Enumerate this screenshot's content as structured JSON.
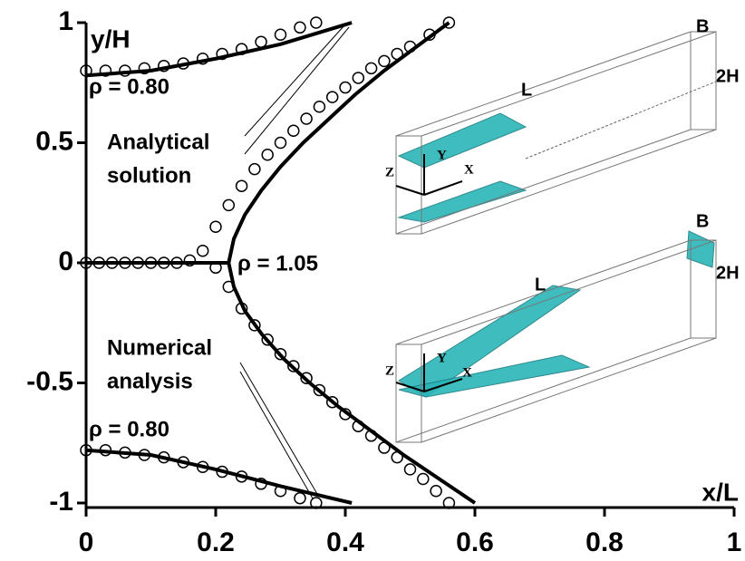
{
  "chart_data": {
    "type": "line",
    "xlabel": "x/L",
    "ylabel": "y/H",
    "xlim": [
      0,
      1
    ],
    "ylim": [
      -1,
      1
    ],
    "xticks": [
      0,
      0.2,
      0.4,
      0.6,
      0.8,
      1
    ],
    "yticks": [
      1,
      0.5,
      0,
      -0.5,
      -1
    ],
    "annotations": [
      "ρ = 0.80",
      "Analytical",
      "solution",
      "ρ = 1.05",
      "Numerical",
      "analysis",
      "ρ = 0.80"
    ],
    "series": [
      {
        "style": "line",
        "color": "#000000",
        "x": [
          0,
          0.1,
          0.2,
          0.3,
          0.41
        ],
        "values": [
          0.78,
          0.8,
          0.85,
          0.91,
          1.0
        ]
      },
      {
        "style": "line",
        "color": "#000000",
        "x": [
          0,
          0.1,
          0.2,
          0.3,
          0.41
        ],
        "values": [
          -0.78,
          -0.8,
          -0.86,
          -0.93,
          -1.0
        ]
      },
      {
        "style": "line",
        "color": "#000000",
        "x": [
          0,
          0.22
        ],
        "values": [
          0,
          0
        ]
      },
      {
        "style": "line",
        "color": "#000000",
        "x": [
          0.56,
          0.51,
          0.46,
          0.415,
          0.375,
          0.335,
          0.3,
          0.27,
          0.245,
          0.228,
          0.22,
          0.228,
          0.245,
          0.272,
          0.305,
          0.345,
          0.39,
          0.44,
          0.49,
          0.545,
          0.6
        ],
        "values": [
          1.0,
          0.9,
          0.8,
          0.7,
          0.6,
          0.5,
          0.4,
          0.3,
          0.2,
          0.1,
          0,
          -0.1,
          -0.2,
          -0.3,
          -0.4,
          -0.5,
          -0.6,
          -0.7,
          -0.8,
          -0.9,
          -1.0
        ]
      },
      {
        "style": "marker",
        "color": "#000000",
        "x": [
          0,
          0.03,
          0.06,
          0.09,
          0.12,
          0.15,
          0.18,
          0.21,
          0.24,
          0.27,
          0.3,
          0.33,
          0.355
        ],
        "values": [
          0.8,
          0.8,
          0.8,
          0.81,
          0.82,
          0.83,
          0.85,
          0.87,
          0.89,
          0.92,
          0.95,
          0.98,
          1.0
        ]
      },
      {
        "style": "marker",
        "color": "#000000",
        "x": [
          0,
          0.03,
          0.06,
          0.09,
          0.12,
          0.15,
          0.18,
          0.21,
          0.24,
          0.27,
          0.3,
          0.33,
          0.355
        ],
        "values": [
          -0.78,
          -0.78,
          -0.79,
          -0.8,
          -0.81,
          -0.83,
          -0.85,
          -0.87,
          -0.89,
          -0.92,
          -0.95,
          -0.98,
          -1.0
        ]
      },
      {
        "style": "marker",
        "color": "#000000",
        "x": [
          0,
          0.02,
          0.04,
          0.06,
          0.08,
          0.1,
          0.12,
          0.14,
          0.16,
          0.18,
          0.2,
          0.22,
          0.24,
          0.26,
          0.28,
          0.3,
          0.32,
          0.34,
          0.36,
          0.38,
          0.4,
          0.42,
          0.44,
          0.46,
          0.48,
          0.5,
          0.53,
          0.56
        ],
        "values": [
          0,
          0,
          0,
          0,
          0,
          0,
          0,
          0,
          0.01,
          0.05,
          0.15,
          0.24,
          0.32,
          0.39,
          0.45,
          0.5,
          0.55,
          0.6,
          0.65,
          0.69,
          0.73,
          0.77,
          0.81,
          0.84,
          0.87,
          0.9,
          0.95,
          1.0
        ]
      },
      {
        "style": "marker",
        "color": "#000000",
        "x": [
          0.2,
          0.22,
          0.24,
          0.26,
          0.28,
          0.3,
          0.32,
          0.34,
          0.36,
          0.38,
          0.4,
          0.42,
          0.44,
          0.46,
          0.48,
          0.5,
          0.52,
          0.54,
          0.56
        ],
        "values": [
          -0.02,
          -0.1,
          -0.19,
          -0.26,
          -0.32,
          -0.38,
          -0.43,
          -0.48,
          -0.53,
          -0.58,
          -0.63,
          -0.68,
          -0.72,
          -0.77,
          -0.81,
          -0.86,
          -0.9,
          -0.95,
          -1.0
        ]
      }
    ]
  },
  "insets": [
    {
      "labels": [
        "B",
        "2H",
        "L",
        "Y",
        "Z",
        "X"
      ]
    },
    {
      "labels": [
        "B",
        "2H",
        "L",
        "Y",
        "Z",
        "X"
      ]
    }
  ]
}
